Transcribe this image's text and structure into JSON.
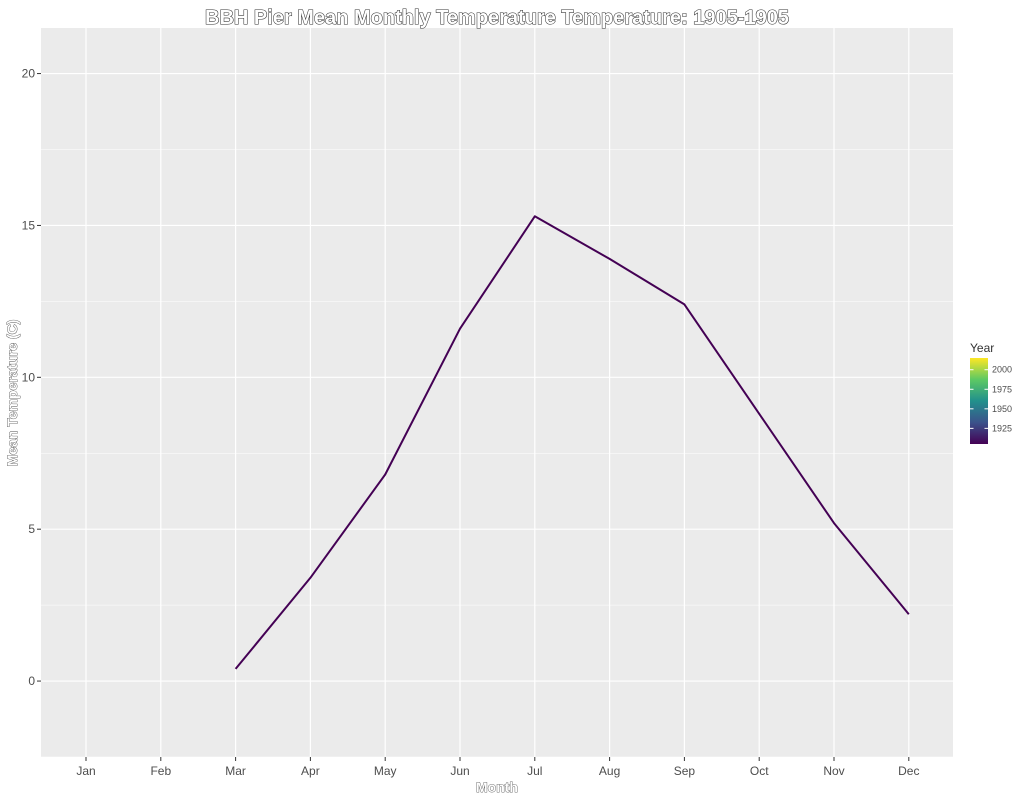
{
  "chart_data": {
    "type": "line",
    "title": "BBH Pier Mean Monthly Temperature Temperature: 1905-1905",
    "xlabel": "Month",
    "ylabel": "Mean Temperature (C)",
    "categories": [
      "Jan",
      "Feb",
      "Mar",
      "Apr",
      "May",
      "Jun",
      "Jul",
      "Aug",
      "Sep",
      "Oct",
      "Nov",
      "Dec"
    ],
    "y_ticks": [
      "0",
      "5",
      "10",
      "15",
      "20"
    ],
    "ylim": [
      -2.5,
      21.5
    ],
    "grid": true,
    "background_color": "#EBEBEB",
    "series": [
      {
        "name": "1905",
        "color": "#440154",
        "values": [
          null,
          null,
          0.4,
          3.4,
          6.8,
          11.6,
          15.3,
          13.9,
          12.4,
          8.8,
          5.2,
          2.2
        ]
      }
    ],
    "legend": {
      "title": "Year",
      "position": "right",
      "labels": [
        "2000",
        "1975",
        "1950",
        "1925"
      ],
      "label_values": [
        2000,
        1975,
        1950,
        1925
      ],
      "range": [
        1905,
        2015
      ],
      "gradient": [
        "#440154",
        "#3B528B",
        "#21908C",
        "#5DC963",
        "#FDE725"
      ]
    }
  }
}
